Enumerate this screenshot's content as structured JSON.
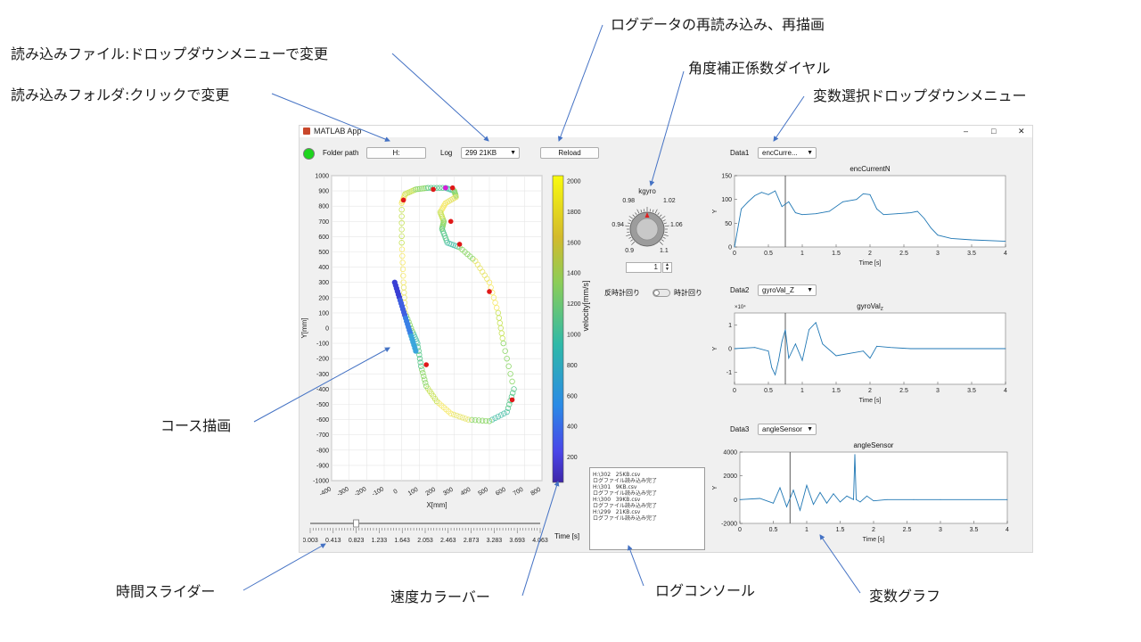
{
  "annotations": {
    "redraw": "ログデータの再読み込み、再描画",
    "file": "読み込みファイル:ドロップダウンメニューで変更",
    "dial": "角度補正係数ダイヤル",
    "var_dropdown": "変数選択ドロップダウンメニュー",
    "folder": "読み込みフォルダ:クリックで変更",
    "course": "コース描画",
    "slider": "時間スライダー",
    "colorbar": "速度カラーバー",
    "console": "ログコンソール",
    "graph": "変数グラフ"
  },
  "window": {
    "title": "MATLAB App",
    "minimize": "–",
    "maximize": "□",
    "close": "✕"
  },
  "toolbar": {
    "folder_label": "Folder path",
    "folder_value": "H:",
    "log_label": "Log",
    "log_value": "299   21KB",
    "reload": "Reload",
    "status_color": "#1ed41e"
  },
  "course_plot": {
    "xlabel": "X[mm]",
    "ylabel": "Y[mm]",
    "xticks": [
      "-400",
      "-300",
      "-200",
      "-100",
      "0",
      "100",
      "200",
      "300",
      "400",
      "500",
      "600",
      "700",
      "800"
    ],
    "yticks": [
      "1000",
      "900",
      "800",
      "700",
      "600",
      "500",
      "400",
      "300",
      "200",
      "100",
      "0",
      "-100",
      "-200",
      "-300",
      "-400",
      "-500",
      "-600",
      "-700",
      "-800",
      "-900",
      "-1000"
    ]
  },
  "colorbar": {
    "label": "velocity[mm/s]",
    "ticks": [
      "2000",
      "1800",
      "1600",
      "1400",
      "1200",
      "1000",
      "800",
      "600",
      "400",
      "200"
    ]
  },
  "slider": {
    "ticks": [
      "0.003",
      "0.413",
      "0.823",
      "1.233",
      "1.643",
      "2.053",
      "2.463",
      "2.873",
      "3.283",
      "3.693",
      "4.063"
    ],
    "unit": "Time [s]",
    "value_fraction": 0.2
  },
  "dial": {
    "title": "kgyro",
    "ticks": [
      "0.98",
      "1.02",
      "0.94",
      "1.06",
      "0.9",
      "1.1"
    ],
    "value": "1",
    "ccw": "反時計回り",
    "cw": "時計回り"
  },
  "console": {
    "lines": [
      "H:\\302   25KB.csv",
      "ログファイル読み込み完了",
      "H:\\301   9KB.csv",
      "ログファイル読み込み完了",
      "H:\\300   39KB.csv",
      "ログファイル読み込み完了",
      "H:\\299   21KB.csv",
      "ログファイル読み込み完了"
    ]
  },
  "graphs": [
    {
      "label": "Data1",
      "select": "encCurre...",
      "title": "encCurrentN",
      "ylabel": "Y",
      "xlabel": "Time [s]",
      "yticks": [
        "150",
        "100",
        "50",
        "0"
      ],
      "xticks": [
        "0",
        "0.5",
        "1",
        "1.5",
        "2",
        "2.5",
        "3",
        "3.5",
        "4"
      ],
      "exponent": ""
    },
    {
      "label": "Data2",
      "select": "gyroVal_Z",
      "title": "gyroVal",
      "title_sub": "Z",
      "ylabel": "Y",
      "xlabel": "Time [s]",
      "yticks": [
        "1",
        "0",
        "-1"
      ],
      "xticks": [
        "0",
        "0.5",
        "1",
        "1.5",
        "2",
        "2.5",
        "3",
        "3.5",
        "4"
      ],
      "exponent": "×10⁴"
    },
    {
      "label": "Data3",
      "select": "angleSensor",
      "title": "angleSensor",
      "ylabel": "Y",
      "xlabel": "Time [s]",
      "yticks": [
        "4000",
        "2000",
        "0",
        "-2000"
      ],
      "xticks": [
        "0",
        "0.5",
        "1",
        "1.5",
        "2",
        "2.5",
        "3",
        "3.5",
        "4"
      ],
      "exponent": ""
    }
  ],
  "chart_data": [
    {
      "type": "line",
      "title": "encCurrentN",
      "xlabel": "Time [s]",
      "ylabel": "Y",
      "xlim": [
        0,
        4
      ],
      "ylim": [
        0,
        150
      ],
      "x": [
        0,
        0.1,
        0.2,
        0.3,
        0.4,
        0.5,
        0.6,
        0.7,
        0.8,
        0.9,
        1.0,
        1.2,
        1.4,
        1.6,
        1.8,
        1.9,
        2.0,
        2.1,
        2.2,
        2.4,
        2.6,
        2.7,
        2.8,
        2.9,
        3.0,
        3.2,
        3.5,
        4.0
      ],
      "values": [
        0,
        80,
        95,
        108,
        115,
        110,
        118,
        85,
        95,
        72,
        68,
        70,
        75,
        95,
        100,
        112,
        110,
        80,
        68,
        70,
        72,
        75,
        60,
        40,
        25,
        18,
        15,
        12
      ]
    },
    {
      "type": "line",
      "title": "gyroVal_Z",
      "xlabel": "Time [s]",
      "ylabel": "Y",
      "xlim": [
        0,
        4
      ],
      "ylim": [
        -1.5,
        1.5
      ],
      "x": [
        0,
        0.3,
        0.5,
        0.55,
        0.6,
        0.65,
        0.7,
        0.75,
        0.8,
        0.9,
        1.0,
        1.1,
        1.2,
        1.3,
        1.5,
        1.7,
        1.9,
        2.0,
        2.1,
        2.3,
        2.6,
        3.0,
        4.0
      ],
      "values": [
        0,
        0.05,
        -0.1,
        -0.8,
        -1.1,
        -0.5,
        0.3,
        0.8,
        -0.4,
        0.2,
        -0.5,
        0.8,
        1.1,
        0.2,
        -0.3,
        -0.2,
        -0.1,
        -0.4,
        0.1,
        0.05,
        0,
        0,
        0
      ]
    },
    {
      "type": "line",
      "title": "angleSensor",
      "xlabel": "Time [s]",
      "ylabel": "Y",
      "xlim": [
        0,
        4
      ],
      "ylim": [
        -2000,
        4000
      ],
      "x": [
        0,
        0.3,
        0.5,
        0.6,
        0.7,
        0.8,
        0.9,
        1.0,
        1.1,
        1.2,
        1.3,
        1.4,
        1.5,
        1.6,
        1.7,
        1.72,
        1.74,
        1.8,
        1.9,
        2.0,
        2.2,
        2.6,
        3.0,
        4.0
      ],
      "values": [
        0,
        100,
        -300,
        1000,
        -600,
        800,
        -900,
        1200,
        -400,
        600,
        -300,
        500,
        -200,
        300,
        0,
        3800,
        0,
        -200,
        300,
        -100,
        0,
        0,
        0,
        0
      ]
    }
  ]
}
